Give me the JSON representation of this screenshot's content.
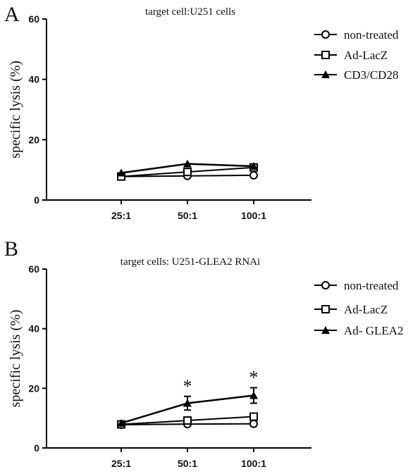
{
  "chart_data": [
    {
      "type": "line",
      "panel_letter": "A",
      "title": "target cell:U251 cells",
      "xlabel": "",
      "ylabel": "specific lysis (%)",
      "categories": [
        "25:1",
        "50:1",
        "100:1"
      ],
      "ylim": [
        0,
        60
      ],
      "yticks": [
        "0",
        "20",
        "40",
        "60"
      ],
      "grid": false,
      "legend_position": "top-right",
      "series": [
        {
          "name": "non-treated",
          "marker": "circle",
          "values": [
            7.8,
            8.0,
            8.2
          ],
          "errors": [
            0.4,
            0.4,
            0.5
          ]
        },
        {
          "name": "Ad-LacZ",
          "marker": "square",
          "values": [
            7.8,
            9.3,
            10.8
          ],
          "errors": [
            0.4,
            0.5,
            0.6
          ]
        },
        {
          "name": "CD3/CD28",
          "marker": "triangle",
          "values": [
            9.0,
            12.0,
            11.2
          ],
          "errors": [
            0.4,
            0.5,
            0.5
          ]
        }
      ],
      "annotations": []
    },
    {
      "type": "line",
      "panel_letter": "B",
      "title": "target cells: U251-GLEA2 RNAi",
      "xlabel": "",
      "ylabel": "specific lysis (%)",
      "categories": [
        "25:1",
        "50:1",
        "100:1"
      ],
      "ylim": [
        0,
        60
      ],
      "yticks": [
        "0",
        "20",
        "40",
        "60"
      ],
      "grid": false,
      "legend_position": "top-right",
      "series": [
        {
          "name": "non-treated",
          "marker": "circle",
          "values": [
            7.8,
            8.0,
            8.1
          ],
          "errors": [
            0.4,
            0.5,
            0.5
          ]
        },
        {
          "name": "Ad-LacZ",
          "marker": "square",
          "values": [
            7.9,
            9.2,
            10.5
          ],
          "errors": [
            0.4,
            0.5,
            0.6
          ]
        },
        {
          "name": "Ad- GLEA2",
          "marker": "triangle",
          "values": [
            8.3,
            15.0,
            17.6
          ],
          "errors": [
            0.5,
            2.3,
            2.6
          ]
        }
      ],
      "annotations": [
        {
          "category": "50:1",
          "text": "*"
        },
        {
          "category": "100:1",
          "text": "*"
        }
      ]
    }
  ]
}
